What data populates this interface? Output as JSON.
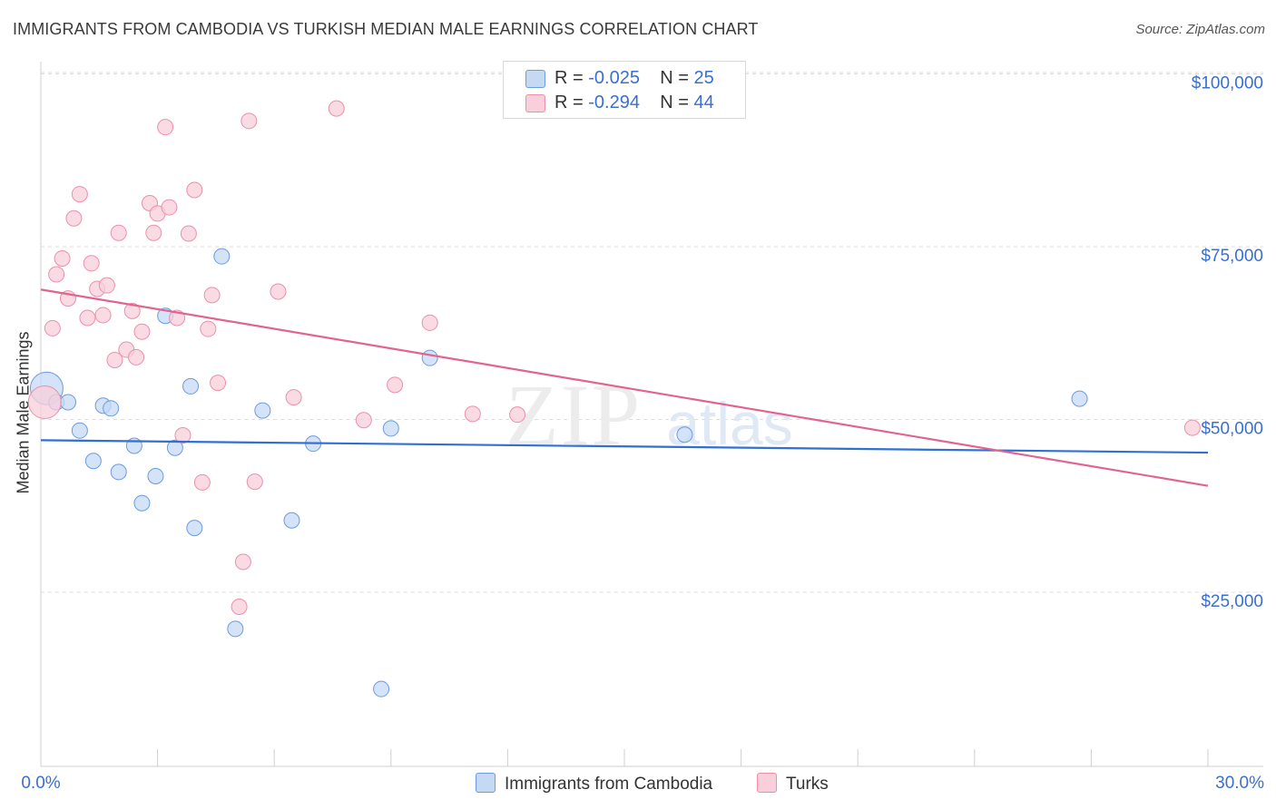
{
  "header": {
    "title": "IMMIGRANTS FROM CAMBODIA VS TURKISH MEDIAN MALE EARNINGS CORRELATION CHART",
    "source": "Source: ZipAtlas.com"
  },
  "watermark": {
    "zip": "ZIP",
    "atlas": "atlas"
  },
  "colors": {
    "blue_fill": "#c5d9f5",
    "blue_stroke": "#6b9be0",
    "blue_line": "#2f6fd6",
    "pink_fill": "#f8cfdb",
    "pink_stroke": "#ec8fab",
    "pink_line": "#e0648f",
    "axis_value": "#3a6fd1",
    "grid": "#dddddd"
  },
  "legend": {
    "rows": [
      {
        "r_label": "R = ",
        "r_value": "-0.025",
        "n_label": "N = ",
        "n_value": "25"
      },
      {
        "r_label": "R = ",
        "r_value": "-0.294",
        "n_label": "N = ",
        "n_value": "44"
      }
    ]
  },
  "bottom_legend": {
    "series1": "Immigrants from Cambodia",
    "series2": "Turks"
  },
  "chart_data": {
    "type": "scatter",
    "title": "IMMIGRANTS FROM CAMBODIA VS TURKISH MEDIAN MALE EARNINGS CORRELATION CHART",
    "xlabel": "",
    "ylabel": "Median Male Earnings",
    "xlim": [
      0,
      30
    ],
    "ylim": [
      0,
      105000
    ],
    "x_tick_labels": [
      "0.0%",
      "30.0%"
    ],
    "y_ticks": [
      25000,
      50000,
      75000,
      100000
    ],
    "y_tick_labels": [
      "$25,000",
      "$50,000",
      "$75,000",
      "$100,000"
    ],
    "grid": true,
    "legend_placement": "top-center",
    "series": [
      {
        "name": "Immigrants from Cambodia",
        "color": "#6b9be0",
        "trend": {
          "x": [
            0,
            30
          ],
          "y": [
            47000,
            45200
          ]
        },
        "points": [
          {
            "x": 0.15,
            "y": 54500,
            "big": true
          },
          {
            "x": 0.4,
            "y": 52500
          },
          {
            "x": 0.7,
            "y": 52500
          },
          {
            "x": 1.0,
            "y": 48400
          },
          {
            "x": 1.35,
            "y": 44000
          },
          {
            "x": 1.6,
            "y": 52000
          },
          {
            "x": 1.8,
            "y": 51600
          },
          {
            "x": 2.0,
            "y": 42400
          },
          {
            "x": 2.4,
            "y": 46200
          },
          {
            "x": 2.6,
            "y": 37900
          },
          {
            "x": 2.95,
            "y": 41800
          },
          {
            "x": 3.2,
            "y": 65000
          },
          {
            "x": 3.45,
            "y": 45900
          },
          {
            "x": 3.85,
            "y": 54800
          },
          {
            "x": 3.95,
            "y": 34300
          },
          {
            "x": 4.65,
            "y": 73600
          },
          {
            "x": 5.0,
            "y": 19700
          },
          {
            "x": 5.7,
            "y": 51300
          },
          {
            "x": 6.45,
            "y": 35400
          },
          {
            "x": 7.0,
            "y": 46500
          },
          {
            "x": 8.75,
            "y": 11000
          },
          {
            "x": 9.0,
            "y": 48700
          },
          {
            "x": 10.0,
            "y": 58900
          },
          {
            "x": 16.55,
            "y": 47800
          },
          {
            "x": 26.7,
            "y": 53000
          }
        ]
      },
      {
        "name": "Turks",
        "color": "#ec8fab",
        "trend": {
          "x": [
            0,
            30
          ],
          "y": [
            68800,
            40400
          ]
        },
        "points": [
          {
            "x": 0.1,
            "y": 52500,
            "big": true
          },
          {
            "x": 0.3,
            "y": 63200
          },
          {
            "x": 0.4,
            "y": 71000
          },
          {
            "x": 0.55,
            "y": 73300
          },
          {
            "x": 0.7,
            "y": 67500
          },
          {
            "x": 0.85,
            "y": 79100
          },
          {
            "x": 1.0,
            "y": 82600
          },
          {
            "x": 1.2,
            "y": 64700
          },
          {
            "x": 1.3,
            "y": 72600
          },
          {
            "x": 1.45,
            "y": 68900
          },
          {
            "x": 1.6,
            "y": 65100
          },
          {
            "x": 1.7,
            "y": 69400
          },
          {
            "x": 1.9,
            "y": 58600
          },
          {
            "x": 2.0,
            "y": 77000
          },
          {
            "x": 2.2,
            "y": 60100
          },
          {
            "x": 2.35,
            "y": 65700
          },
          {
            "x": 2.45,
            "y": 59000
          },
          {
            "x": 2.6,
            "y": 62700
          },
          {
            "x": 2.8,
            "y": 81300
          },
          {
            "x": 2.9,
            "y": 77000
          },
          {
            "x": 3.0,
            "y": 79800
          },
          {
            "x": 3.2,
            "y": 92300
          },
          {
            "x": 3.3,
            "y": 80700
          },
          {
            "x": 3.5,
            "y": 64700
          },
          {
            "x": 3.65,
            "y": 47700
          },
          {
            "x": 3.8,
            "y": 76900
          },
          {
            "x": 3.95,
            "y": 83200
          },
          {
            "x": 4.15,
            "y": 40900
          },
          {
            "x": 4.3,
            "y": 63100
          },
          {
            "x": 4.4,
            "y": 68000
          },
          {
            "x": 4.55,
            "y": 55300
          },
          {
            "x": 5.1,
            "y": 22900
          },
          {
            "x": 5.2,
            "y": 29400
          },
          {
            "x": 5.35,
            "y": 93200
          },
          {
            "x": 5.5,
            "y": 41000
          },
          {
            "x": 6.1,
            "y": 68500
          },
          {
            "x": 6.5,
            "y": 53200
          },
          {
            "x": 7.6,
            "y": 95000
          },
          {
            "x": 8.3,
            "y": 49900
          },
          {
            "x": 9.1,
            "y": 55000
          },
          {
            "x": 10.0,
            "y": 64000
          },
          {
            "x": 11.1,
            "y": 50800
          },
          {
            "x": 12.25,
            "y": 50700
          },
          {
            "x": 29.6,
            "y": 48800
          }
        ]
      }
    ]
  }
}
